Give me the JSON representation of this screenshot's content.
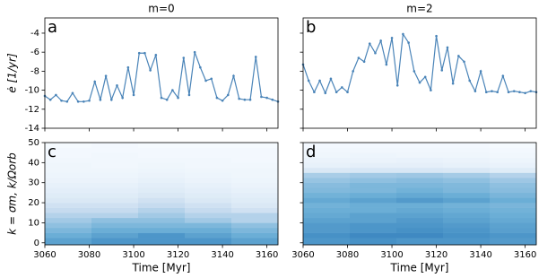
{
  "chart_data": [
    {
      "type": "line",
      "title": "m=0",
      "panel_label": "a",
      "ylabel": "ė [1/yr]",
      "color": "#4a84b8",
      "xlim": [
        3060,
        3165
      ],
      "ylim": [
        -14,
        -2.4
      ],
      "xticks": [
        3060,
        3080,
        3100,
        3120,
        3140,
        3160
      ],
      "yticks": [
        -14,
        -12,
        -10,
        -8,
        -6,
        -4
      ],
      "x": [
        3060,
        3062.5,
        3065,
        3067.5,
        3070,
        3072.5,
        3075,
        3077.5,
        3080,
        3082.5,
        3085,
        3087.5,
        3090,
        3092.5,
        3095,
        3097.5,
        3100,
        3102.5,
        3105,
        3107.5,
        3110,
        3112.5,
        3115,
        3117.5,
        3120,
        3122.5,
        3125,
        3127.5,
        3130,
        3132.5,
        3135,
        3137.5,
        3140,
        3142.5,
        3145,
        3147.5,
        3150,
        3152.5,
        3155,
        3157.5,
        3160,
        3162.5,
        3165
      ],
      "values": [
        -10.6,
        -11.0,
        -10.5,
        -11.1,
        -11.2,
        -10.3,
        -11.2,
        -11.2,
        -11.1,
        -9.1,
        -11.0,
        -8.5,
        -11.0,
        -9.5,
        -10.8,
        -7.6,
        -10.5,
        -6.1,
        -6.1,
        -7.9,
        -6.3,
        -10.8,
        -11.0,
        -10.0,
        -10.8,
        -6.6,
        -10.5,
        -6.0,
        -7.6,
        -9.0,
        -8.8,
        -10.8,
        -11.1,
        -10.5,
        -8.5,
        -10.9,
        -11.0,
        -11.0,
        -6.5,
        -10.7,
        -10.8,
        -11.0,
        -11.2
      ]
    },
    {
      "type": "line",
      "title": "m=2",
      "panel_label": "b",
      "color": "#4a84b8",
      "xlim": [
        3060,
        3165
      ],
      "ylim": [
        -14,
        -2.4
      ],
      "xticks": [
        3060,
        3080,
        3100,
        3120,
        3140,
        3160
      ],
      "yticks": [
        -14,
        -12,
        -10,
        -8,
        -6,
        -4
      ],
      "x": [
        3060,
        3062.5,
        3065,
        3067.5,
        3070,
        3072.5,
        3075,
        3077.5,
        3080,
        3082.5,
        3085,
        3087.5,
        3090,
        3092.5,
        3095,
        3097.5,
        3100,
        3102.5,
        3105,
        3107.5,
        3110,
        3112.5,
        3115,
        3117.5,
        3120,
        3122.5,
        3125,
        3127.5,
        3130,
        3132.5,
        3135,
        3137.5,
        3140,
        3142.5,
        3145,
        3147.5,
        3150,
        3152.5,
        3155,
        3157.5,
        3160,
        3162.5,
        3165
      ],
      "values": [
        -7.3,
        -9.0,
        -10.2,
        -9.0,
        -10.3,
        -8.8,
        -10.2,
        -9.7,
        -10.2,
        -8.0,
        -6.6,
        -7.0,
        -5.1,
        -6.1,
        -4.8,
        -7.3,
        -4.5,
        -9.5,
        -4.1,
        -5.0,
        -8.0,
        -9.2,
        -8.6,
        -10.0,
        -4.3,
        -7.9,
        -5.5,
        -9.3,
        -6.4,
        -7.0,
        -9.0,
        -10.1,
        -8.0,
        -10.2,
        -10.1,
        -10.2,
        -8.5,
        -10.2,
        -10.1,
        -10.2,
        -10.3,
        -10.1,
        -10.2
      ]
    },
    {
      "type": "heatmap",
      "panel_label": "c",
      "ylabel": "k = σm, k/Ωorb",
      "xlabel": "Time [Myr]",
      "colormap": "Blues",
      "xlim": [
        3060,
        3165
      ],
      "ylim": [
        -1,
        50
      ],
      "xticks": [
        3060,
        3080,
        3100,
        3120,
        3140,
        3160
      ],
      "yticks": [
        0,
        10,
        20,
        30,
        40,
        50
      ],
      "zlim": [
        0,
        1
      ],
      "x_bins": [
        3060,
        3081,
        3102,
        3123,
        3144,
        3165
      ],
      "y_bins": [
        -1,
        2.5,
        5,
        7.5,
        10,
        12.5,
        15,
        17.5,
        20,
        22.5,
        25,
        27.5,
        30,
        32.5,
        35,
        37.5,
        40,
        42.5,
        45,
        47.5,
        50
      ],
      "z": [
        [
          0.55,
          0.6,
          0.6,
          0.6,
          0.55
        ],
        [
          0.5,
          0.55,
          0.6,
          0.55,
          0.5
        ],
        [
          0.45,
          0.5,
          0.5,
          0.5,
          0.45
        ],
        [
          0.4,
          0.45,
          0.45,
          0.45,
          0.4
        ],
        [
          0.35,
          0.4,
          0.4,
          0.35,
          0.3
        ],
        [
          0.3,
          0.3,
          0.35,
          0.3,
          0.3
        ],
        [
          0.25,
          0.25,
          0.3,
          0.25,
          0.2
        ],
        [
          0.2,
          0.2,
          0.25,
          0.2,
          0.15
        ],
        [
          0.15,
          0.15,
          0.2,
          0.15,
          0.12
        ],
        [
          0.12,
          0.12,
          0.15,
          0.12,
          0.1
        ],
        [
          0.1,
          0.1,
          0.12,
          0.1,
          0.08
        ],
        [
          0.08,
          0.08,
          0.1,
          0.08,
          0.06
        ],
        [
          0.06,
          0.06,
          0.08,
          0.06,
          0.05
        ],
        [
          0.05,
          0.05,
          0.06,
          0.05,
          0.04
        ],
        [
          0.04,
          0.04,
          0.05,
          0.04,
          0.04
        ],
        [
          0.04,
          0.03,
          0.04,
          0.03,
          0.03
        ],
        [
          0.03,
          0.03,
          0.03,
          0.03,
          0.02
        ],
        [
          0.02,
          0.03,
          0.02,
          0.02,
          0.02
        ],
        [
          0.02,
          0.02,
          0.02,
          0.02,
          0.02
        ],
        [
          0.01,
          0.02,
          0.01,
          0.01,
          0.01
        ]
      ]
    },
    {
      "type": "heatmap",
      "panel_label": "d",
      "xlabel": "Time [Myr]",
      "colormap": "Blues",
      "xlim": [
        3060,
        3165
      ],
      "ylim": [
        -1,
        50
      ],
      "xticks": [
        3060,
        3080,
        3100,
        3120,
        3140,
        3160
      ],
      "yticks": [
        0,
        10,
        20,
        30,
        40,
        50
      ],
      "zlim": [
        0,
        1
      ],
      "x_bins": [
        3060,
        3081,
        3102,
        3123,
        3144,
        3165
      ],
      "y_bins": [
        -1,
        2.5,
        5,
        7.5,
        10,
        12.5,
        15,
        17.5,
        20,
        22.5,
        25,
        27.5,
        30,
        32.5,
        35,
        37.5,
        40,
        42.5,
        45,
        47.5,
        50
      ],
      "z": [
        [
          0.6,
          0.62,
          0.6,
          0.6,
          0.58
        ],
        [
          0.62,
          0.65,
          0.65,
          0.62,
          0.6
        ],
        [
          0.58,
          0.6,
          0.62,
          0.6,
          0.56
        ],
        [
          0.58,
          0.6,
          0.6,
          0.58,
          0.55
        ],
        [
          0.55,
          0.55,
          0.58,
          0.55,
          0.52
        ],
        [
          0.52,
          0.55,
          0.55,
          0.53,
          0.5
        ],
        [
          0.5,
          0.5,
          0.52,
          0.5,
          0.48
        ],
        [
          0.48,
          0.5,
          0.5,
          0.48,
          0.46
        ],
        [
          0.52,
          0.55,
          0.58,
          0.55,
          0.5
        ],
        [
          0.48,
          0.5,
          0.52,
          0.5,
          0.46
        ],
        [
          0.44,
          0.45,
          0.48,
          0.45,
          0.42
        ],
        [
          0.42,
          0.45,
          0.45,
          0.44,
          0.4
        ],
        [
          0.38,
          0.4,
          0.42,
          0.4,
          0.36
        ],
        [
          0.33,
          0.35,
          0.36,
          0.34,
          0.3
        ],
        [
          0.15,
          0.16,
          0.16,
          0.15,
          0.12
        ],
        [
          0.08,
          0.09,
          0.09,
          0.08,
          0.07
        ],
        [
          0.06,
          0.06,
          0.07,
          0.06,
          0.05
        ],
        [
          0.04,
          0.05,
          0.04,
          0.04,
          0.03
        ],
        [
          0.03,
          0.03,
          0.03,
          0.03,
          0.02
        ],
        [
          0.02,
          0.02,
          0.02,
          0.02,
          0.01
        ]
      ]
    }
  ]
}
